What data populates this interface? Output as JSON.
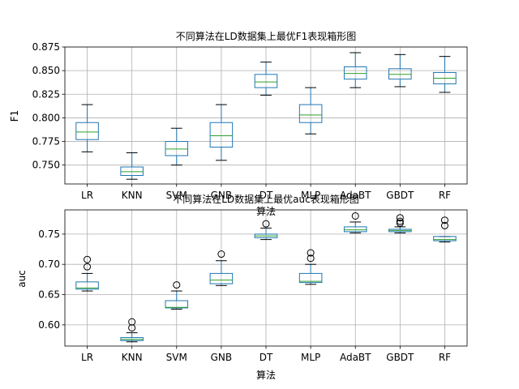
{
  "chart_data": [
    {
      "type": "box",
      "title": "不同算法在LD数据集上最优F1表现箱形图",
      "xlabel": "算法",
      "ylabel": "F1",
      "categories": [
        "LR",
        "KNN",
        "SVM",
        "GNB",
        "DT",
        "MLP",
        "AdaBT",
        "GBDT",
        "RF"
      ],
      "ylim": [
        0.73,
        0.875
      ],
      "yticks": [
        0.75,
        0.775,
        0.8,
        0.825,
        0.85,
        0.875
      ],
      "ytick_labels": [
        "0.750",
        "0.775",
        "0.800",
        "0.825",
        "0.850",
        "0.875"
      ],
      "grid": true,
      "boxes": [
        {
          "whislo": 0.764,
          "q1": 0.777,
          "med": 0.785,
          "q3": 0.795,
          "whishi": 0.814,
          "fliers": []
        },
        {
          "whislo": 0.735,
          "q1": 0.739,
          "med": 0.743,
          "q3": 0.748,
          "whishi": 0.763,
          "fliers": []
        },
        {
          "whislo": 0.75,
          "q1": 0.76,
          "med": 0.767,
          "q3": 0.775,
          "whishi": 0.789,
          "fliers": []
        },
        {
          "whislo": 0.755,
          "q1": 0.769,
          "med": 0.781,
          "q3": 0.795,
          "whishi": 0.814,
          "fliers": []
        },
        {
          "whislo": 0.824,
          "q1": 0.832,
          "med": 0.838,
          "q3": 0.846,
          "whishi": 0.859,
          "fliers": []
        },
        {
          "whislo": 0.783,
          "q1": 0.795,
          "med": 0.803,
          "q3": 0.814,
          "whishi": 0.832,
          "fliers": []
        },
        {
          "whislo": 0.832,
          "q1": 0.841,
          "med": 0.847,
          "q3": 0.854,
          "whishi": 0.869,
          "fliers": []
        },
        {
          "whislo": 0.833,
          "q1": 0.841,
          "med": 0.846,
          "q3": 0.852,
          "whishi": 0.867,
          "fliers": []
        },
        {
          "whislo": 0.827,
          "q1": 0.836,
          "med": 0.842,
          "q3": 0.848,
          "whishi": 0.865,
          "fliers": []
        }
      ]
    },
    {
      "type": "box",
      "title": "不同算法在LD数据集上最优auc表现箱形图",
      "xlabel": "算法",
      "ylabel": "auc",
      "categories": [
        "LR",
        "KNN",
        "SVM",
        "GNB",
        "DT",
        "MLP",
        "AdaBT",
        "GBDT",
        "RF"
      ],
      "ylim": [
        0.565,
        0.79
      ],
      "yticks": [
        0.6,
        0.65,
        0.7,
        0.75
      ],
      "ytick_labels": [
        "0.60",
        "0.65",
        "0.70",
        "0.75"
      ],
      "grid": true,
      "boxes": [
        {
          "whislo": 0.656,
          "q1": 0.659,
          "med": 0.661,
          "q3": 0.671,
          "whishi": 0.685,
          "fliers": [
            0.696,
            0.708
          ]
        },
        {
          "whislo": 0.572,
          "q1": 0.574,
          "med": 0.576,
          "q3": 0.579,
          "whishi": 0.587,
          "fliers": [
            0.595,
            0.605
          ]
        },
        {
          "whislo": 0.626,
          "q1": 0.628,
          "med": 0.629,
          "q3": 0.64,
          "whishi": 0.656,
          "fliers": [
            0.666
          ]
        },
        {
          "whislo": 0.665,
          "q1": 0.668,
          "med": 0.674,
          "q3": 0.685,
          "whishi": 0.706,
          "fliers": [
            0.717
          ]
        },
        {
          "whislo": 0.741,
          "q1": 0.744,
          "med": 0.747,
          "q3": 0.75,
          "whishi": 0.76,
          "fliers": [
            0.767
          ]
        },
        {
          "whislo": 0.667,
          "q1": 0.67,
          "med": 0.672,
          "q3": 0.685,
          "whishi": 0.7,
          "fliers": [
            0.71,
            0.719
          ]
        },
        {
          "whislo": 0.752,
          "q1": 0.754,
          "med": 0.757,
          "q3": 0.762,
          "whishi": 0.77,
          "fliers": [
            0.78
          ]
        },
        {
          "whislo": 0.752,
          "q1": 0.754,
          "med": 0.756,
          "q3": 0.758,
          "whishi": 0.762,
          "fliers": [
            0.768,
            0.771,
            0.777
          ]
        },
        {
          "whislo": 0.737,
          "q1": 0.739,
          "med": 0.741,
          "q3": 0.746,
          "whishi": 0.746,
          "fliers": [
            0.764,
            0.773
          ]
        }
      ]
    }
  ],
  "colors": {
    "box": "#1f77b4",
    "median": "#2ca02c",
    "whisker": "#000000",
    "grid": "#b0b0b0",
    "spine": "#000000"
  }
}
